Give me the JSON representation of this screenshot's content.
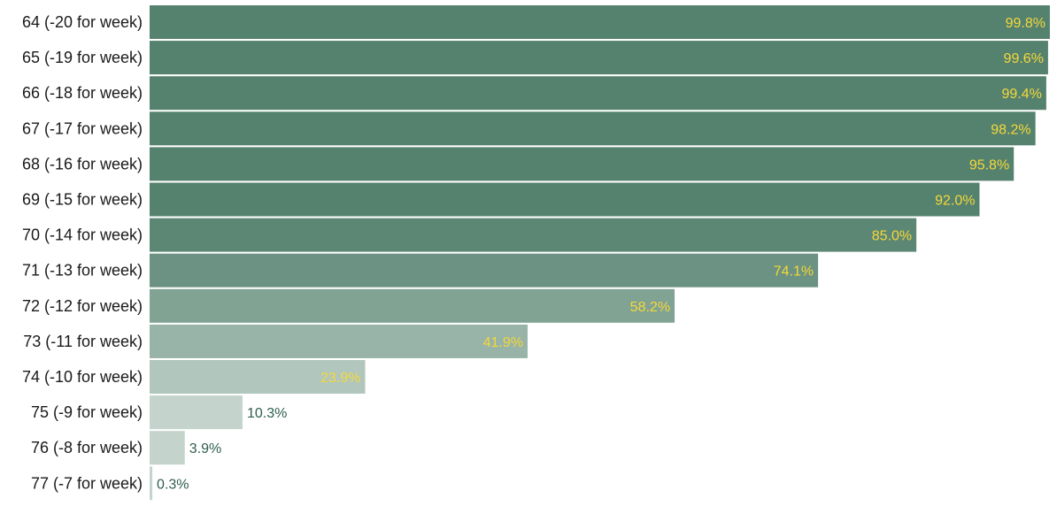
{
  "chart_data": {
    "type": "bar",
    "orientation": "horizontal",
    "categories": [
      "64 (-20 for week)",
      "65 (-19 for week)",
      "66 (-18 for week)",
      "67 (-17 for week)",
      "68 (-16 for week)",
      "69 (-15 for week)",
      "70 (-14 for week)",
      "71 (-13 for week)",
      "72 (-12 for week)",
      "73 (-11 for week)",
      "74 (-10 for week)",
      "75 (-9 for week)",
      "76 (-8 for week)",
      "77 (-7 for week)"
    ],
    "values": [
      99.8,
      99.6,
      99.4,
      98.2,
      95.8,
      92.0,
      85.0,
      74.1,
      58.2,
      41.9,
      23.9,
      10.3,
      3.9,
      0.3
    ],
    "value_labels": [
      "99.8%",
      "99.6%",
      "99.4%",
      "98.2%",
      "95.8%",
      "92.0%",
      "85.0%",
      "74.1%",
      "58.2%",
      "41.9%",
      "23.9%",
      "10.3%",
      "3.9%",
      "0.3%"
    ],
    "xlim": [
      0,
      100
    ],
    "title": "",
    "xlabel": "",
    "ylabel": "",
    "grid": false,
    "colors": {
      "bar_dark": "#55826f",
      "bar_light": "#c4d4cd",
      "label_inside": "#f5d838",
      "label_outside": "#2f5e4b",
      "category_text": "#1a1a1a"
    }
  }
}
